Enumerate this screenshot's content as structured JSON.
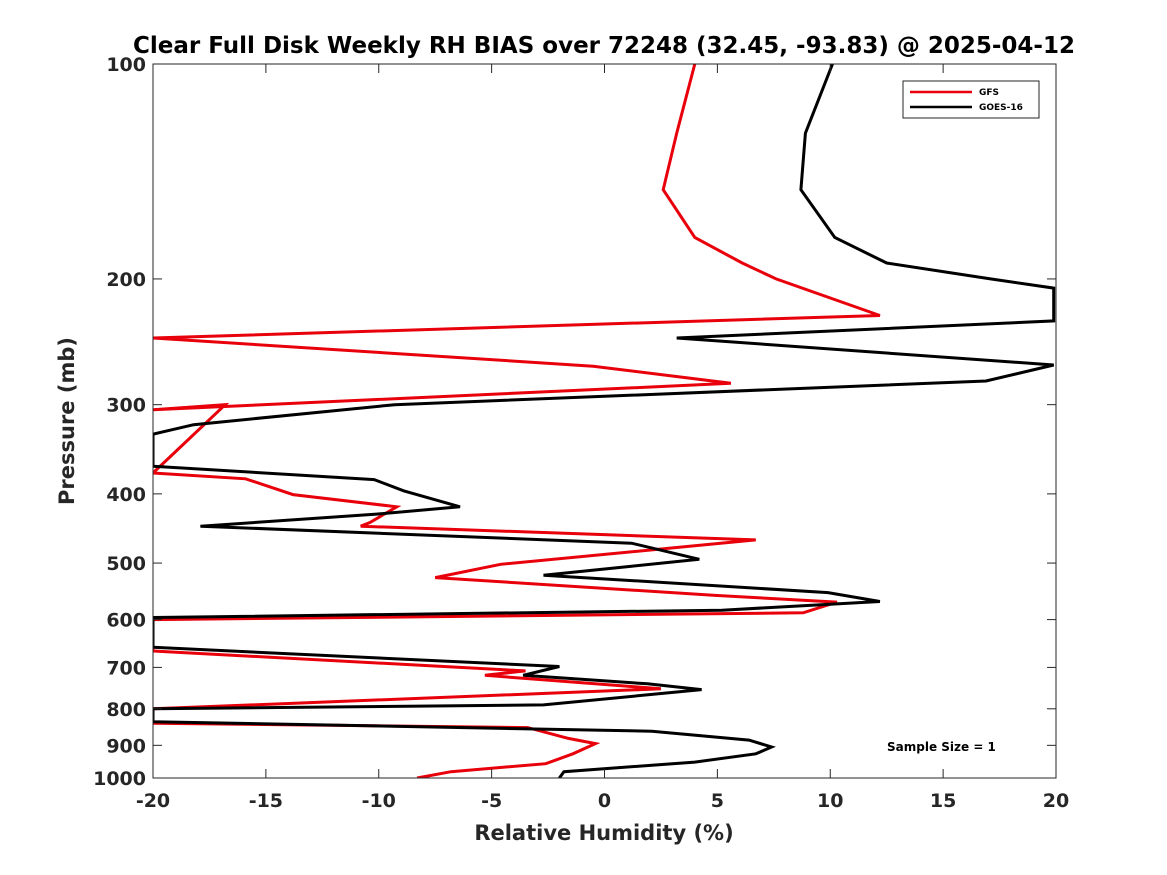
{
  "chart_data": {
    "type": "line",
    "title": "Clear Full Disk Weekly RH BIAS over 72248 (32.45, -93.83) @ 2025-04-12",
    "xlabel": "Relative Humidity (%)",
    "ylabel": "Pressure (mb)",
    "xlim": [
      -20,
      20
    ],
    "ylim": [
      100,
      1000
    ],
    "y_scale": "log",
    "y_direction": "reversed",
    "x_ticks": [
      -20,
      -15,
      -10,
      -5,
      0,
      5,
      10,
      15,
      20
    ],
    "y_ticks": [
      100,
      200,
      300,
      400,
      500,
      600,
      700,
      800,
      900,
      1000
    ],
    "grid": false,
    "legend_position": "top-right",
    "annotation": "Sample Size = 1",
    "series": [
      {
        "name": "GFS",
        "color": "#e8000b",
        "points": [
          [
            4.0,
            100
          ],
          [
            3.2,
            125
          ],
          [
            2.6,
            150
          ],
          [
            4.0,
            175
          ],
          [
            6.1,
            190
          ],
          [
            7.6,
            200
          ],
          [
            12.2,
            225
          ],
          [
            -20.0,
            242
          ],
          [
            -0.5,
            265
          ],
          [
            5.6,
            280
          ],
          [
            -20.0,
            305
          ],
          [
            -16.8,
            300
          ],
          [
            -20.0,
            374
          ],
          [
            -15.9,
            381
          ],
          [
            -13.8,
            401
          ],
          [
            -9.2,
            417
          ],
          [
            -10.4,
            439
          ],
          [
            -10.8,
            444
          ],
          [
            6.7,
            464
          ],
          [
            -4.6,
            502
          ],
          [
            -7.5,
            524
          ],
          [
            4.9,
            555
          ],
          [
            10.3,
            567
          ],
          [
            8.8,
            587
          ],
          [
            -20.0,
            600
          ],
          [
            -20.0,
            664
          ],
          [
            -3.5,
            708
          ],
          [
            -5.3,
            718
          ],
          [
            2.5,
            750
          ],
          [
            -20.0,
            800
          ],
          [
            -20.0,
            838
          ],
          [
            -3.4,
            850
          ],
          [
            -1.6,
            880
          ],
          [
            -0.4,
            895
          ],
          [
            -1.4,
            925
          ],
          [
            -2.6,
            955
          ],
          [
            -6.8,
            980
          ],
          [
            -8.3,
            1000
          ]
        ]
      },
      {
        "name": "GOES-16",
        "color": "#000000",
        "points": [
          [
            10.1,
            100
          ],
          [
            8.9,
            125
          ],
          [
            8.7,
            150
          ],
          [
            10.2,
            175
          ],
          [
            12.5,
            190
          ],
          [
            17.1,
            200
          ],
          [
            19.9,
            206
          ],
          [
            19.9,
            229
          ],
          [
            3.2,
            242
          ],
          [
            19.9,
            264
          ],
          [
            16.9,
            278
          ],
          [
            -9.3,
            300
          ],
          [
            -18.2,
            320
          ],
          [
            -20.0,
            330
          ],
          [
            -20.0,
            366
          ],
          [
            -10.2,
            382
          ],
          [
            -8.9,
            396
          ],
          [
            -6.4,
            417
          ],
          [
            -10.1,
            427
          ],
          [
            -17.9,
            444
          ],
          [
            1.2,
            469
          ],
          [
            4.2,
            494
          ],
          [
            1.2,
            505
          ],
          [
            -2.7,
            520
          ],
          [
            9.9,
            550
          ],
          [
            12.2,
            566
          ],
          [
            5.2,
            582
          ],
          [
            -20.0,
            596
          ],
          [
            -20.0,
            656
          ],
          [
            -2.0,
            698
          ],
          [
            -3.6,
            718
          ],
          [
            1.9,
            738
          ],
          [
            4.3,
            752
          ],
          [
            -2.7,
            790
          ],
          [
            -20.0,
            800
          ],
          [
            -20.0,
            834
          ],
          [
            2.1,
            860
          ],
          [
            6.4,
            885
          ],
          [
            7.4,
            905
          ],
          [
            6.7,
            925
          ],
          [
            4.0,
            950
          ],
          [
            -1.8,
            980
          ],
          [
            -2.0,
            1000
          ]
        ]
      }
    ]
  }
}
